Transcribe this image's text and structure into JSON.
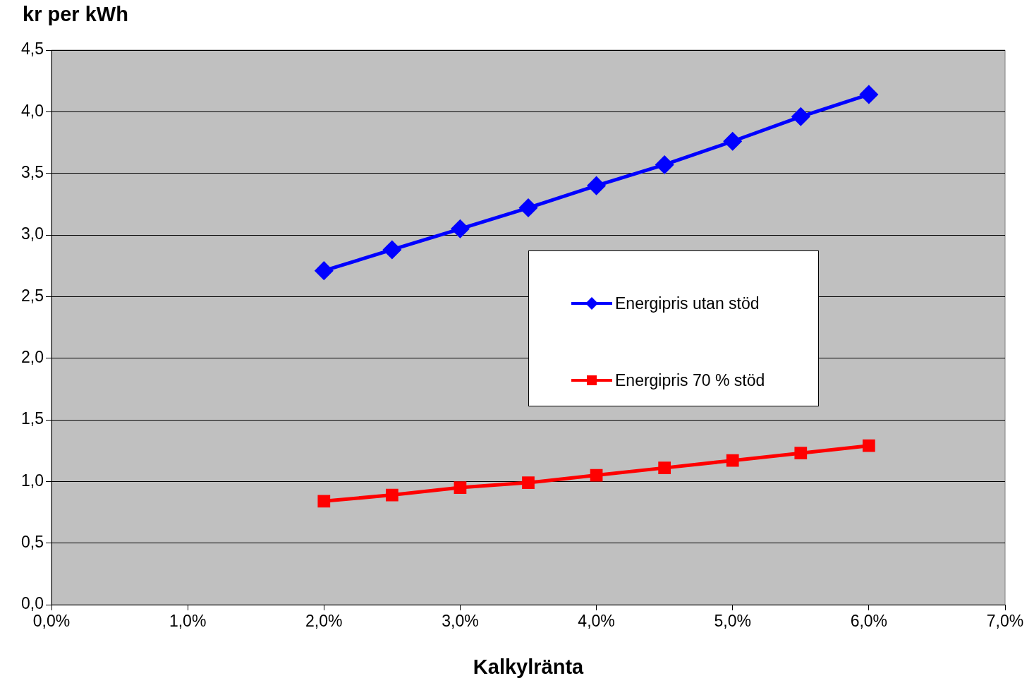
{
  "chart_data": {
    "type": "line",
    "ylabel": "kr per kWh",
    "xlabel": "Kalkylränta",
    "x": [
      2.0,
      2.5,
      3.0,
      3.5,
      4.0,
      4.5,
      5.0,
      5.5,
      6.0
    ],
    "series": [
      {
        "name": "Energipris utan stöd",
        "color": "#0000ff",
        "marker": "diamond",
        "values": [
          2.71,
          2.88,
          3.05,
          3.22,
          3.4,
          3.57,
          3.76,
          3.96,
          4.14
        ]
      },
      {
        "name": "Energipris 70 % stöd",
        "color": "#ff0000",
        "marker": "square",
        "values": [
          0.84,
          0.89,
          0.95,
          0.99,
          1.05,
          1.11,
          1.17,
          1.23,
          1.29
        ]
      }
    ],
    "xlim": [
      0,
      7
    ],
    "xticks": [
      {
        "value": 0,
        "label": "0,0%"
      },
      {
        "value": 1,
        "label": "1,0%"
      },
      {
        "value": 2,
        "label": "2,0%"
      },
      {
        "value": 3,
        "label": "3,0%"
      },
      {
        "value": 4,
        "label": "4,0%"
      },
      {
        "value": 5,
        "label": "5,0%"
      },
      {
        "value": 6,
        "label": "6,0%"
      },
      {
        "value": 7,
        "label": "7,0%"
      }
    ],
    "ylim": [
      0,
      4.5
    ],
    "yticks": [
      {
        "value": 0,
        "label": "0,0"
      },
      {
        "value": 0.5,
        "label": "0,5"
      },
      {
        "value": 1,
        "label": "1,0"
      },
      {
        "value": 1.5,
        "label": "1,5"
      },
      {
        "value": 2,
        "label": "2,0"
      },
      {
        "value": 2.5,
        "label": "2,5"
      },
      {
        "value": 3,
        "label": "3,0"
      },
      {
        "value": 3.5,
        "label": "3,5"
      },
      {
        "value": 4,
        "label": "4,0"
      },
      {
        "value": 4.5,
        "label": "4,5"
      }
    ],
    "grid": "y",
    "legend": "center",
    "line_style": "solid"
  }
}
